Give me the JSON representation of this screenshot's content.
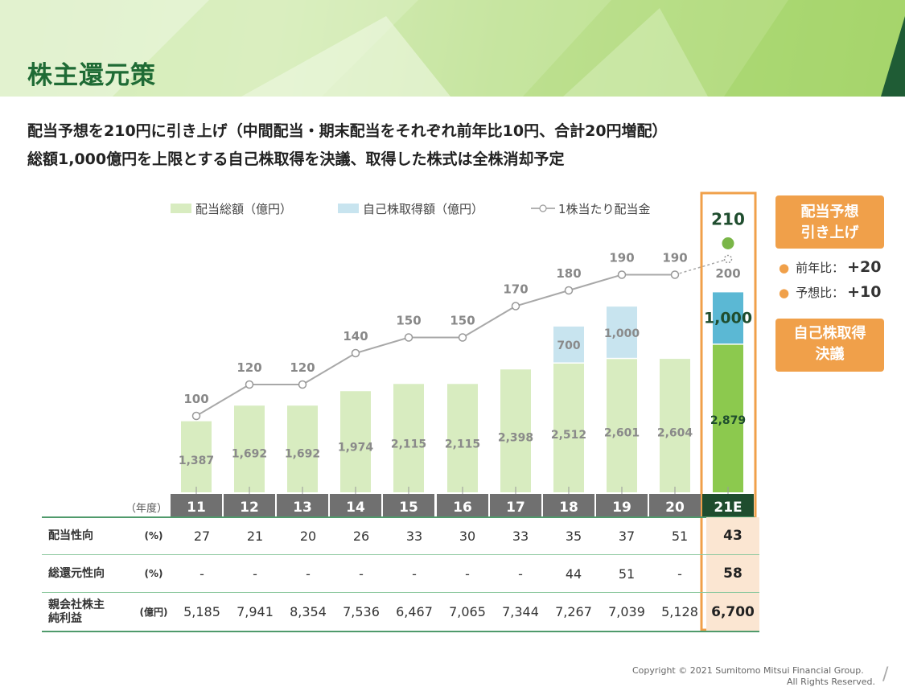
{
  "title": "株主還元策",
  "lead_lines": [
    "配当予想を210円に引き上げ（中間配当・期末配当をそれぞれ前年比10円、合計20円増配）",
    "総額1,000億円を上限とする自己株取得を決議、取得した株式は全株消却予定"
  ],
  "colors": {
    "title_green": "#1f6b35",
    "dividend_bar": "#d8ecc0",
    "buyback_bar": "#c8e4ef",
    "forecast_bar": "#8cc94e",
    "forecast_buyback": "#5bb8d4",
    "highlight_orange": "#f0a04a",
    "year_bar": "#707070",
    "year_bar_forecast": "#1f4d2e"
  },
  "chart_data": {
    "type": "bar",
    "categories": [
      "11",
      "12",
      "13",
      "14",
      "15",
      "16",
      "17",
      "18",
      "19",
      "20",
      "21E"
    ],
    "xlabel": "（年度）",
    "legend": [
      "配当総額（億円）",
      "自己株取得額（億円）",
      "1株当たり配当金"
    ],
    "series": [
      {
        "name": "配当総額（億円）",
        "values": [
          1387,
          1692,
          1692,
          1974,
          2115,
          2115,
          2398,
          2512,
          2601,
          2604,
          2879
        ],
        "labels": [
          "1,387",
          "1,692",
          "1,692",
          "1,974",
          "2,115",
          "2,115",
          "2,398",
          "2,512",
          "2,601",
          "2,604",
          "2,879"
        ]
      },
      {
        "name": "自己株取得額（億円）",
        "values": [
          0,
          0,
          0,
          0,
          0,
          0,
          0,
          700,
          1000,
          0,
          1000
        ],
        "labels": [
          "",
          "",
          "",
          "",
          "",
          "",
          "",
          "700",
          "1,000",
          "",
          "1,000"
        ]
      },
      {
        "name": "1株当たり配当金",
        "values": [
          100,
          120,
          120,
          140,
          150,
          150,
          170,
          180,
          190,
          190,
          200
        ],
        "labels": [
          "100",
          "120",
          "120",
          "140",
          "150",
          "150",
          "170",
          "180",
          "190",
          "190",
          "200"
        ]
      }
    ],
    "forecast_dividend": 210,
    "forecast_dividend_label": "210"
  },
  "side": {
    "box1_line1": "配当予想",
    "box1_line2": "引き上げ",
    "yoy_label": "前年比：",
    "yoy_value": "+20",
    "forecast_label": "予想比：",
    "forecast_value": "+10",
    "box2_line1": "自己株取得",
    "box2_line2": "決議"
  },
  "table": {
    "rows": [
      {
        "label1": "配当性向",
        "label2": "",
        "unit": "(%)",
        "values": [
          "27",
          "21",
          "20",
          "26",
          "33",
          "30",
          "33",
          "35",
          "37",
          "51"
        ],
        "forecast": "43"
      },
      {
        "label1": "総還元性向",
        "label2": "",
        "unit": "(%)",
        "values": [
          "-",
          "-",
          "-",
          "-",
          "-",
          "-",
          "-",
          "44",
          "51",
          "-"
        ],
        "forecast": "58"
      },
      {
        "label1": "親会社株主",
        "label2": "純利益",
        "unit": "(億円)",
        "values": [
          "5,185",
          "7,941",
          "8,354",
          "7,536",
          "6,467",
          "7,065",
          "7,344",
          "7,267",
          "7,039",
          "5,128"
        ],
        "forecast": "6,700"
      }
    ]
  },
  "footer": {
    "copyright": "Copyright © 2021 Sumitomo Mitsui Financial Group.",
    "rights": "All Rights Reserved."
  }
}
